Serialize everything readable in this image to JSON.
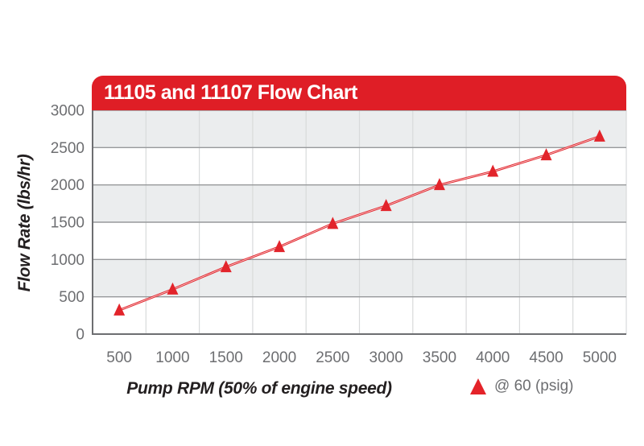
{
  "banner": {
    "title": "11105 and 11107 Flow Chart",
    "background_color": "#df1e26",
    "text_color": "#ffffff"
  },
  "y_axis": {
    "title": "Flow Rate (lbs/hr)",
    "ticklabels": [
      "3000",
      "2500",
      "2000",
      "1500",
      "1000",
      "500",
      "0"
    ]
  },
  "x_axis": {
    "title": "Pump RPM (50% of engine speed)",
    "ticklabels": [
      "500",
      "1000",
      "1500",
      "2000",
      "2500",
      "3000",
      "3500",
      "4000",
      "4500",
      "5000"
    ]
  },
  "legend": {
    "label": "@ 60 (psig)",
    "marker": "triangle-up-icon",
    "marker_color": "#e42329"
  },
  "colors": {
    "band_gray": "#ebedee",
    "band_white": "#ffffff",
    "h_gridline": "#97999b",
    "v_gridline": "#d8dadb",
    "axis_line": "#6d6e71",
    "tick_text": "#6d6e71",
    "series_red": "#e2242b",
    "line_core": "#f6c9cb"
  },
  "chart_data": {
    "type": "line",
    "title": "11105 and 11107 Flow Chart",
    "categories": [
      500,
      1000,
      1500,
      2000,
      2500,
      3000,
      3500,
      4000,
      4500,
      5000
    ],
    "series": [
      {
        "name": "@ 60 (psig)",
        "marker": "triangle-up",
        "color": "#e2242b",
        "values": [
          320,
          600,
          900,
          1170,
          1480,
          1720,
          2000,
          2180,
          2400,
          2650
        ]
      }
    ],
    "xlabel": "Pump RPM (50% of engine speed)",
    "ylabel": "Flow Rate (lbs/hr)",
    "ylim": [
      0,
      3000
    ],
    "ytick_step": 500,
    "grid": "horizontal-bands-with-vertical-category-lines",
    "legend_position": "bottom-right"
  }
}
